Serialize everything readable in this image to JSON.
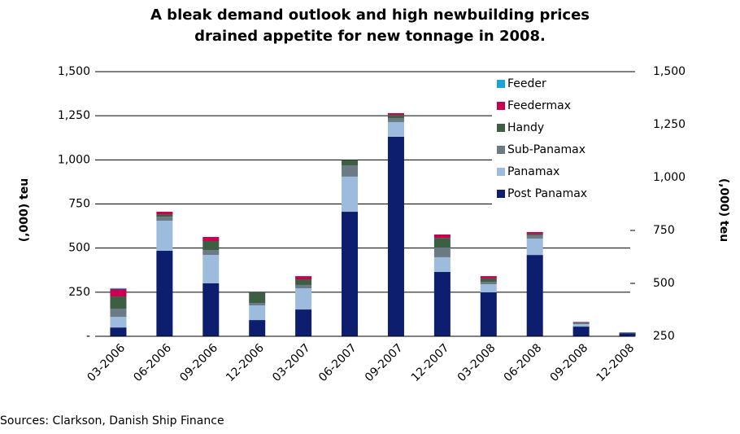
{
  "chart_data": {
    "type": "bar",
    "stacked": true,
    "title": [
      "A bleak demand outlook and high newbuilding prices",
      "drained appetite for new tonnage in 2008."
    ],
    "ylabel": "(,000) teu",
    "y2label": "(,000) teu",
    "categories": [
      "03-2006",
      "06-2006",
      "09-2006",
      "12-2006",
      "03-2007",
      "06-2007",
      "09-2007",
      "12-2007",
      "03-2008",
      "06-2008",
      "09-2008",
      "12-2008"
    ],
    "series": [
      {
        "name": "Post Panamax",
        "color": "#0d1e6e",
        "values": [
          50,
          485,
          300,
          92,
          152,
          706,
          1131,
          365,
          249,
          461,
          55,
          18
        ]
      },
      {
        "name": "Panamax",
        "color": "#9dbcdd",
        "values": [
          60,
          170,
          161,
          83,
          120,
          199,
          83,
          83,
          46,
          93,
          14,
          2
        ]
      },
      {
        "name": "Sub-Panamax",
        "color": "#6b7b85",
        "values": [
          47,
          23,
          28,
          14,
          19,
          64,
          23,
          55,
          14,
          18,
          5,
          0
        ]
      },
      {
        "name": "Handy",
        "color": "#3d5e43",
        "values": [
          69,
          14,
          51,
          60,
          32,
          31,
          18,
          55,
          19,
          9,
          4,
          3
        ]
      },
      {
        "name": "Feedermax",
        "color": "#c8004f",
        "values": [
          42,
          14,
          23,
          0,
          18,
          0,
          10,
          19,
          13,
          10,
          3,
          0
        ]
      },
      {
        "name": "Feeder",
        "color": "#1aa3d9",
        "values": [
          5,
          0,
          0,
          0,
          0,
          0,
          0,
          0,
          0,
          0,
          0,
          0
        ]
      }
    ],
    "ylim": [
      0,
      1500
    ],
    "yticks": [
      {
        "value": 0,
        "label": "-"
      },
      250,
      500,
      750,
      {
        "value": 1000,
        "label": "1,000"
      },
      {
        "value": 1250,
        "label": "1,250"
      },
      {
        "value": 1500,
        "label": "1,500"
      }
    ],
    "y2lim": [
      250,
      1500
    ],
    "y2ticks": [
      250,
      500,
      750,
      {
        "value": 1000,
        "label": "1,000"
      },
      {
        "value": 1250,
        "label": "1,250"
      },
      {
        "value": 1500,
        "label": "1,500"
      }
    ],
    "grid": true,
    "legend": "upper right",
    "source": "Sources: Clarkson, Danish Ship Finance"
  }
}
